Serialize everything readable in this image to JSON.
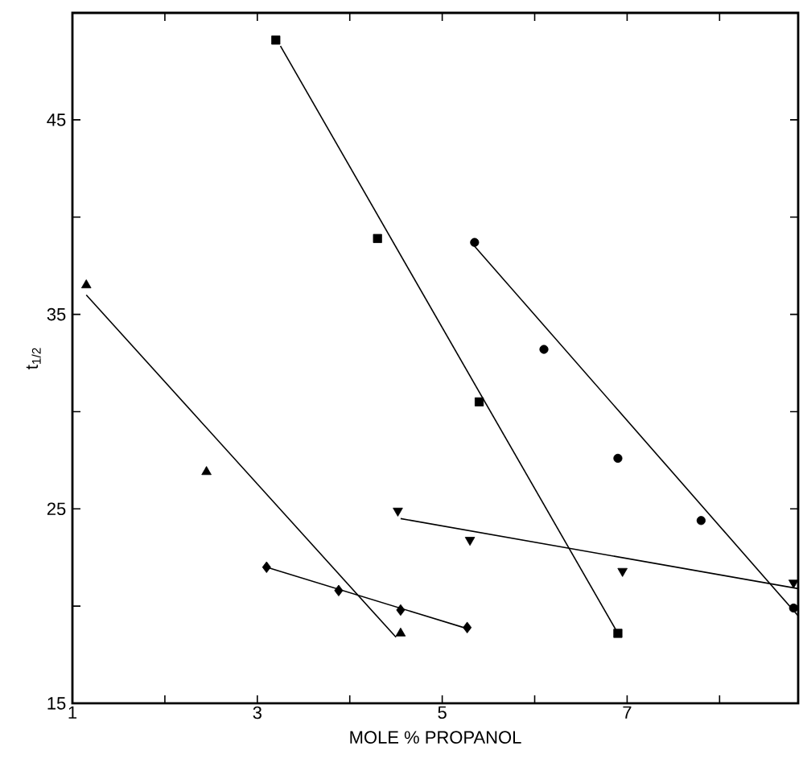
{
  "chart_data": {
    "type": "scatter",
    "xlabel": "MOLE % PROPANOL",
    "ylabel": "t$_{1/2}$",
    "xlim": [
      1,
      8.85
    ],
    "ylim": [
      15,
      50.5
    ],
    "xticks": [
      1,
      {
        "value": 2,
        "label": null
      },
      3,
      {
        "value": 4,
        "label": null
      },
      5,
      {
        "value": 6,
        "label": null
      },
      7,
      {
        "value": 8,
        "label": null
      }
    ],
    "yticks": [
      15,
      {
        "value": 20,
        "label": null
      },
      25,
      {
        "value": 30,
        "label": null
      },
      35,
      {
        "value": 40,
        "label": null
      },
      45
    ],
    "series": [
      {
        "marker": "triangle",
        "color": "#000000",
        "x": [
          1.15,
          2.45,
          4.55
        ],
        "values": [
          36.5,
          26.9,
          18.6
        ]
      },
      {
        "marker": "square",
        "color": "#000000",
        "x": [
          3.2,
          4.3,
          5.4,
          6.9
        ],
        "values": [
          49.1,
          38.9,
          30.5,
          18.6
        ]
      },
      {
        "marker": "circle",
        "color": "#000000",
        "x": [
          5.35,
          6.1,
          6.9,
          7.8,
          8.8
        ],
        "values": [
          38.7,
          33.2,
          27.6,
          24.4,
          19.9
        ]
      },
      {
        "marker": "triangle-down",
        "color": "#000000",
        "x": [
          4.52,
          5.3,
          6.95,
          8.8
        ],
        "values": [
          24.9,
          23.4,
          21.8,
          21.2
        ]
      },
      {
        "marker": "diamond",
        "color": "#000000",
        "x": [
          3.1,
          3.88,
          4.55,
          5.27
        ],
        "values": [
          22.0,
          20.8,
          19.8,
          18.9
        ]
      },
      {
        "type": "line",
        "marker": "none",
        "line_style": "solid",
        "color": "#000000",
        "x": [
          1.15,
          4.5
        ],
        "values": [
          36.0,
          18.4
        ]
      },
      {
        "type": "line",
        "marker": "none",
        "line_style": "solid",
        "color": "#000000",
        "x": [
          3.25,
          6.9
        ],
        "values": [
          48.8,
          18.6
        ]
      },
      {
        "type": "line",
        "marker": "none",
        "line_style": "solid",
        "color": "#000000",
        "x": [
          5.35,
          8.85
        ],
        "values": [
          38.5,
          19.5
        ]
      },
      {
        "type": "line",
        "marker": "none",
        "line_style": "solid",
        "color": "#000000",
        "x": [
          4.55,
          8.85
        ],
        "values": [
          24.5,
          20.9
        ]
      },
      {
        "type": "line",
        "marker": "none",
        "line_style": "solid",
        "color": "#000000",
        "x": [
          3.1,
          5.3
        ],
        "values": [
          22.0,
          18.8
        ]
      }
    ]
  }
}
